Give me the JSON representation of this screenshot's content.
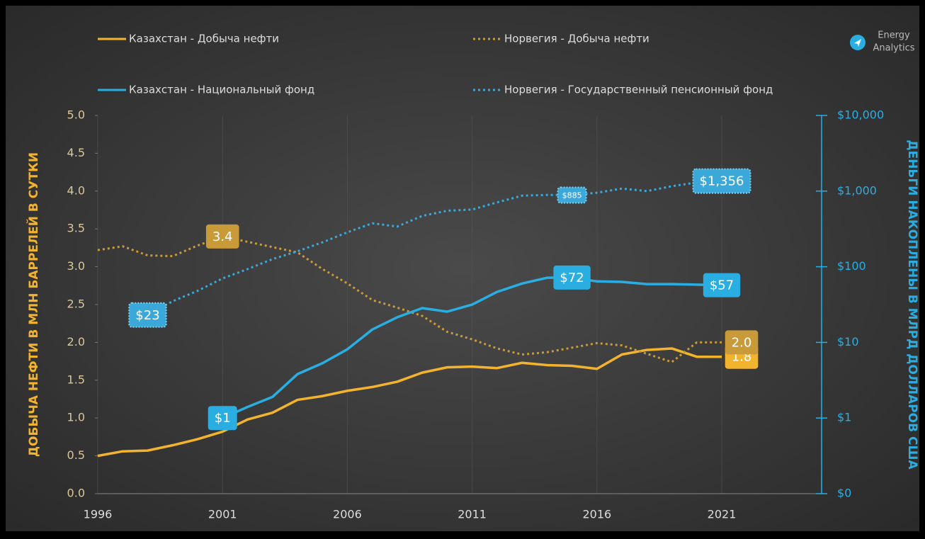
{
  "chart_data": {
    "type": "line",
    "y_label": "ДОБЫЧА НЕФТИ В МЛН БАРРЕЛЕЙ В СУТКИ",
    "y2_label": "ДЕНЬГИ НАКОПЛЕНЫ В МЛРД ДОЛЛАРОВ США",
    "x": [
      1996,
      1997,
      1998,
      1999,
      2000,
      2001,
      2002,
      2003,
      2004,
      2005,
      2006,
      2007,
      2008,
      2009,
      2010,
      2011,
      2012,
      2013,
      2014,
      2015,
      2016,
      2017,
      2018,
      2019,
      2020,
      2021
    ],
    "xlim": [
      1996,
      2025
    ],
    "xticks": [
      1996,
      2001,
      2006,
      2011,
      2016,
      2021
    ],
    "ylim": [
      0,
      5
    ],
    "yticks": [
      {
        "value": 0,
        "label": "0.0"
      },
      {
        "value": 0.5,
        "label": "0.5"
      },
      {
        "value": 1,
        "label": "1.0"
      },
      {
        "value": 1.5,
        "label": "1.5"
      },
      {
        "value": 2,
        "label": "2.0"
      },
      {
        "value": 2.5,
        "label": "2.5"
      },
      {
        "value": 3,
        "label": "3.0"
      },
      {
        "value": 3.5,
        "label": "3.5"
      },
      {
        "value": 4,
        "label": "4.0"
      },
      {
        "value": 4.5,
        "label": "4.5"
      },
      {
        "value": 5,
        "label": "5.0"
      }
    ],
    "y2lim": [
      0.1,
      10000
    ],
    "y2scale": "log",
    "y2ticks": [
      {
        "value": 0.1,
        "label": "$0"
      },
      {
        "value": 1,
        "label": "$1"
      },
      {
        "value": 10,
        "label": "$10"
      },
      {
        "value": 100,
        "label": "$100"
      },
      {
        "value": 1000,
        "label": "$1,000"
      },
      {
        "value": 10000,
        "label": "$10,000"
      }
    ],
    "grid": true,
    "legend": "top",
    "series": [
      {
        "name": "Казахстан - Добыча нефти",
        "color": "#f2b42e",
        "style": "solid",
        "axis": "y",
        "values": [
          0.5,
          0.56,
          0.57,
          0.64,
          0.72,
          0.82,
          0.98,
          1.07,
          1.24,
          1.29,
          1.36,
          1.41,
          1.48,
          1.6,
          1.67,
          1.68,
          1.66,
          1.73,
          1.7,
          1.69,
          1.65,
          1.84,
          1.9,
          1.92,
          1.81,
          1.81
        ],
        "value_labels": [
          null,
          null,
          null,
          null,
          null,
          null,
          null,
          null,
          null,
          null,
          null,
          null,
          null,
          null,
          null,
          null,
          null,
          null,
          null,
          null,
          null,
          null,
          null,
          null,
          null,
          "1.8"
        ]
      },
      {
        "name": "Норвегия - Добыча нефти",
        "color": "#c89a3a",
        "style": "dotted",
        "axis": "y",
        "values": [
          3.22,
          3.27,
          3.15,
          3.14,
          3.28,
          3.4,
          3.33,
          3.26,
          3.19,
          2.97,
          2.78,
          2.56,
          2.46,
          2.35,
          2.14,
          2.04,
          1.92,
          1.84,
          1.87,
          1.93,
          1.99,
          1.96,
          1.85,
          1.74,
          2.0,
          2.0
        ],
        "value_labels": [
          null,
          null,
          null,
          null,
          null,
          "3.4",
          null,
          null,
          null,
          null,
          null,
          null,
          null,
          null,
          null,
          null,
          null,
          null,
          null,
          null,
          null,
          null,
          null,
          null,
          null,
          "2.0"
        ]
      },
      {
        "name": "Казахстан - Национальный фонд",
        "color": "#2aaee2",
        "style": "solid",
        "axis": "y2",
        "values": [
          null,
          null,
          null,
          null,
          null,
          1,
          1.4,
          1.9,
          3.8,
          5.3,
          8.1,
          14.8,
          21.5,
          28.4,
          25.5,
          31.6,
          46.5,
          60,
          71.5,
          72,
          64,
          63,
          59,
          59,
          58,
          57
        ],
        "value_labels": [
          null,
          null,
          null,
          null,
          null,
          "$1",
          null,
          null,
          null,
          null,
          null,
          null,
          null,
          null,
          null,
          null,
          null,
          null,
          null,
          "$72",
          null,
          null,
          null,
          null,
          null,
          "$57"
        ]
      },
      {
        "name": "Норвегия - Государственный пенсионный фонд",
        "color": "#3aa8d8",
        "style": "dotted",
        "axis": "y2",
        "values": [
          null,
          null,
          23,
          35,
          48,
          70,
          93,
          126,
          160,
          210,
          285,
          375,
          340,
          470,
          550,
          570,
          710,
          870,
          890,
          885,
          950,
          1080,
          1000,
          1160,
          1300,
          1356
        ],
        "value_labels": [
          null,
          null,
          "$23",
          null,
          null,
          null,
          null,
          null,
          null,
          null,
          null,
          null,
          null,
          null,
          null,
          null,
          null,
          null,
          null,
          "$885",
          null,
          null,
          null,
          null,
          null,
          "$1,356"
        ]
      }
    ]
  },
  "logo": {
    "lines": [
      "Energy",
      "Analytics"
    ]
  }
}
